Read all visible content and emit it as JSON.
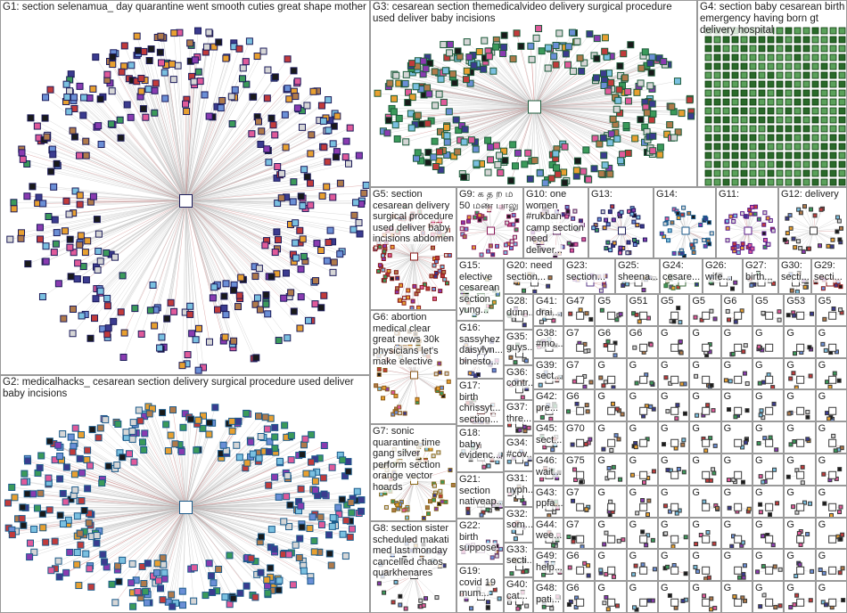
{
  "groups": [
    {
      "label": "G1: section selenamua_ day quarantine went smooth cuties great shape mother"
    },
    {
      "label": "G2: medicalhacks_ cesarean section delivery surgical procedure used deliver baby incisions"
    },
    {
      "label": "G3: cesarean section themedicalvideo delivery surgical procedure used deliver baby incisions"
    },
    {
      "label": "G4: section baby cesarean birth emergency having born gt delivery hospital"
    },
    {
      "label": "G5: section cesarean delivery surgical procedure used deliver baby incisions abdomen"
    },
    {
      "label": "G9: க த ற ம 50 மண பாலு"
    },
    {
      "label": "G10: one women #rukban camp section need deliver..."
    },
    {
      "label": "G13:"
    },
    {
      "label": "G14:"
    },
    {
      "label": "G11:"
    },
    {
      "label": "G12: delivery"
    },
    {
      "label": "G6: abortion medical clear great news 30k physicians let's make elective"
    },
    {
      "label": "G7: sonic quarantine time gang silver perform section orange vector hoards"
    },
    {
      "label": "G8: section sister scheduled makati med last monday cancelled chaos quarkhenares"
    },
    {
      "label": "G15: elective cesarean section yung..."
    },
    {
      "label": "G16: sassyhez daisylyn... binesto..."
    },
    {
      "label": "G17: birth chrissyt... section..."
    },
    {
      "label": "G18: baby evidenc..."
    },
    {
      "label": "G21: section nativeap..."
    },
    {
      "label": "G22: birth suppose"
    },
    {
      "label": "G19: covid 19 mum..."
    },
    {
      "label": "G20: need section..."
    },
    {
      "label": "G23: section..."
    },
    {
      "label": "G25: sheena..."
    },
    {
      "label": "G24: cesare..."
    },
    {
      "label": "G26: wife..."
    },
    {
      "label": "G27: birth..."
    },
    {
      "label": "G30: secti..."
    },
    {
      "label": "G29: secti..."
    },
    {
      "label": "G28: dunn..."
    },
    {
      "label": "G35: guys..."
    },
    {
      "label": "G36: contr..."
    },
    {
      "label": "G37: thre..."
    },
    {
      "label": "G34: #cov..."
    },
    {
      "label": "G31: nyph..."
    },
    {
      "label": "G32: som..."
    },
    {
      "label": "G33: secti..."
    },
    {
      "label": "G40: cat..."
    },
    {
      "label": "G41: drai..."
    },
    {
      "label": "G38: #mo..."
    },
    {
      "label": "G39: sect..."
    },
    {
      "label": "G42: pre..."
    },
    {
      "label": "G45: sect..."
    },
    {
      "label": "G46: wait..."
    },
    {
      "label": "G43: ppfa..."
    },
    {
      "label": "G44: wee..."
    },
    {
      "label": "G49: help..."
    },
    {
      "label": "G48: pati..."
    }
  ],
  "tiles": [
    "G47",
    "G5",
    "G51",
    "G5",
    "G5",
    "G6",
    "G5",
    "G53",
    "G5",
    "G7",
    "G6",
    "G6",
    "G",
    "G",
    "G",
    "G",
    "G",
    "G",
    "G7",
    "G",
    "G",
    "G",
    "G",
    "G",
    "G",
    "G",
    "G",
    "G6",
    "G",
    "G",
    "G",
    "G",
    "G",
    "G",
    "G",
    "G",
    "G70",
    "G",
    "G",
    "G",
    "G",
    "G",
    "G",
    "G",
    "G",
    "G75",
    "G",
    "G",
    "G",
    "G",
    "G",
    "G",
    "G",
    "G",
    "G7",
    "G",
    "G",
    "G",
    "G",
    "G",
    "G",
    "G",
    "G",
    "G7",
    "G",
    "G",
    "G",
    "G",
    "G",
    "G",
    "G",
    "G",
    "G6",
    "G",
    "G",
    "G",
    "G",
    "G",
    "G",
    "G",
    "G",
    "G6",
    "G",
    "G",
    "G",
    "G",
    "G",
    "G",
    "G",
    "G"
  ]
}
